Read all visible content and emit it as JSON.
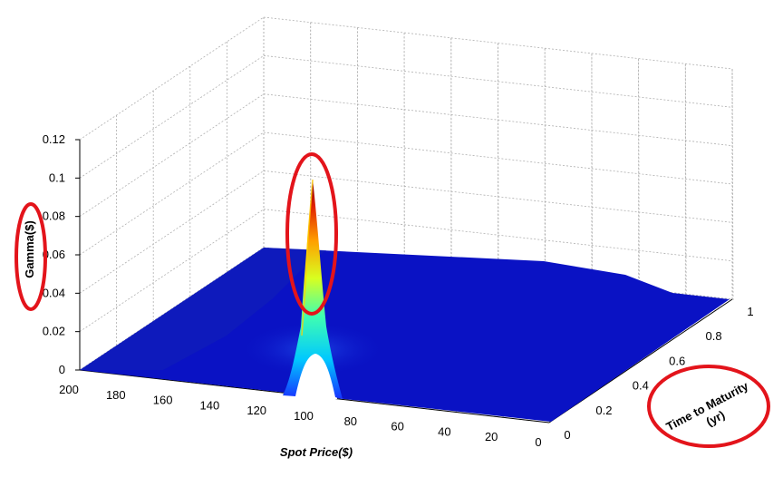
{
  "chart_data": {
    "type": "surface",
    "title": "",
    "xlabel": "Spot Price($)",
    "ylabel": "Time to Maturity (yr)",
    "zlabel": "Gamma($)",
    "xlim": [
      0,
      200
    ],
    "ylim": [
      0,
      1
    ],
    "zlim": [
      0,
      0.12
    ],
    "x_ticks": [
      "200",
      "180",
      "160",
      "140",
      "120",
      "100",
      "80",
      "60",
      "40",
      "20",
      "0"
    ],
    "y_ticks": [
      "0",
      "0.2",
      "0.4",
      "0.6",
      "0.8",
      "1"
    ],
    "z_ticks": [
      "0",
      "0.02",
      "0.04",
      "0.06",
      "0.08",
      "0.1",
      "0.12"
    ],
    "surface": {
      "description_values": {
        "strike": 100,
        "peak_gamma": 0.1,
        "peak_at_time": 0,
        "baseline_gamma_long_maturity": 0.02
      }
    },
    "colormap": [
      "#00008f",
      "#0000ff",
      "#00ffff",
      "#ffff00",
      "#ff0000",
      "#800000"
    ],
    "annotations": {
      "highlight_color": "#e3141b",
      "highlights": [
        "gamma-axis-label",
        "gamma-peak",
        "time-axis-label"
      ]
    },
    "grid": true
  }
}
